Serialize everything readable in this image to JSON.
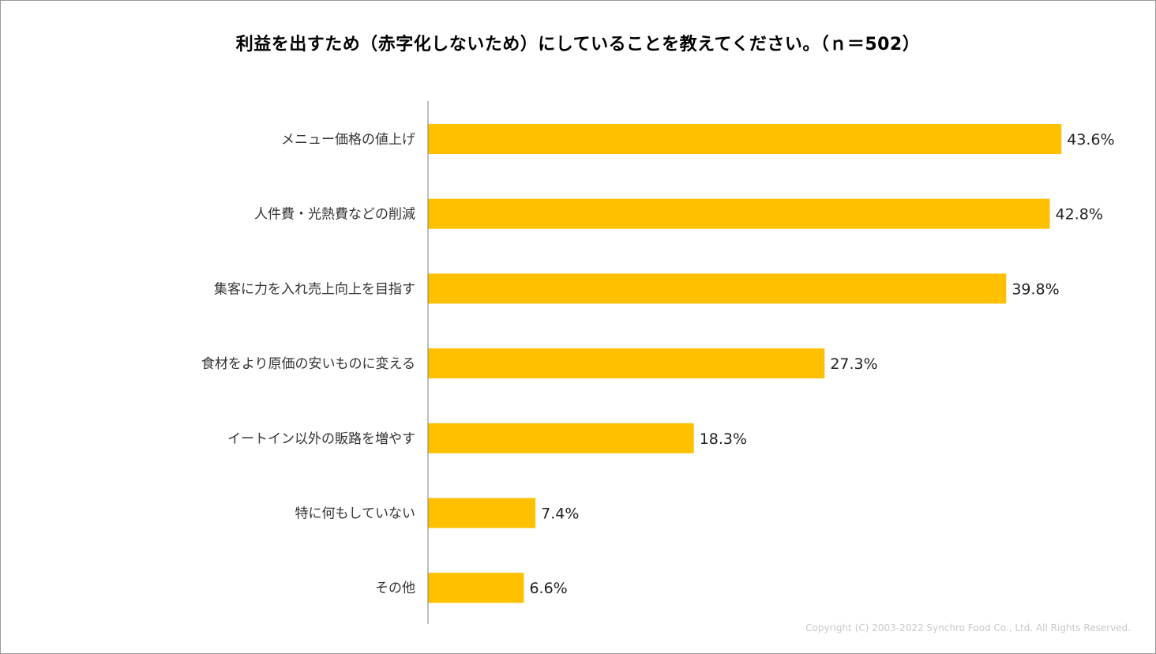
{
  "title": "利益を出すため（赤字化しないため）にしていることを教えてください。（ｎ＝502）",
  "copyright": "Copyright (C) 2003-2022   Synchro Food Co., Ltd. All Rights Reserved.",
  "colors": {
    "bar": "#FFC000",
    "axis": "#7f7f7f"
  },
  "chart_data": {
    "type": "bar",
    "orientation": "horizontal",
    "title": "利益を出すため（赤字化しないため）にしていることを教えてください。（ｎ＝502）",
    "categories": [
      "メニュー価格の値上げ",
      "人件費・光熱費などの削減",
      "集客に力を入れ売上向上を目指す",
      "食材をより原価の安いものに変える",
      "イートイン以外の販路を増やす",
      "特に何もしていない",
      "その他"
    ],
    "values": [
      43.6,
      42.8,
      39.8,
      27.3,
      18.3,
      7.4,
      6.6
    ],
    "value_labels": [
      "43.6%",
      "42.8%",
      "39.8%",
      "27.3%",
      "18.3%",
      "7.4%",
      "6.6%"
    ],
    "unit": "%",
    "xlim": [
      0,
      50
    ],
    "grid": false,
    "legend": "none"
  }
}
